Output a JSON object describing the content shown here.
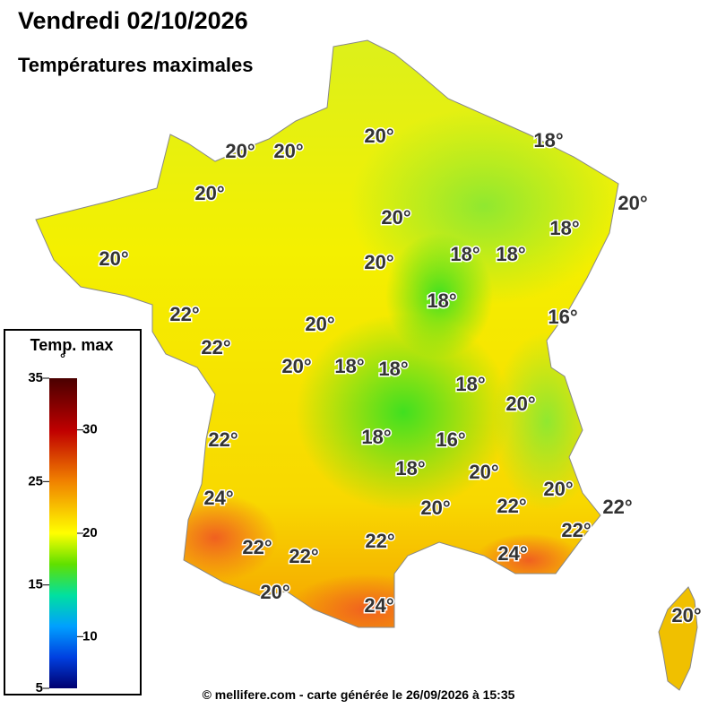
{
  "header": {
    "title": "Vendredi 02/10/2026",
    "subtitle": "Températures maximales"
  },
  "map": {
    "labels": [
      "20°",
      "20°",
      "20°",
      "18°",
      "20°",
      "20°",
      "20°",
      "18°",
      "20°",
      "18°",
      "18°",
      "20°",
      "18°",
      "22°",
      "16°",
      "20°",
      "22°",
      "20°",
      "18°",
      "18°",
      "18°",
      "20°",
      "22°",
      "18°",
      "16°",
      "20°",
      "18°",
      "20°",
      "24°",
      "20°",
      "22°",
      "22°",
      "22°",
      "22°",
      "22°",
      "22°",
      "24°",
      "20°",
      "24°",
      "20°"
    ]
  },
  "legend": {
    "title": "Temp. max",
    "unit": "°",
    "range": [
      5,
      35
    ],
    "ticks": [
      35,
      30,
      25,
      20,
      15,
      10,
      5
    ]
  },
  "footer": "© mellifere.com - carte générée le 26/09/2026 à 15:35"
}
